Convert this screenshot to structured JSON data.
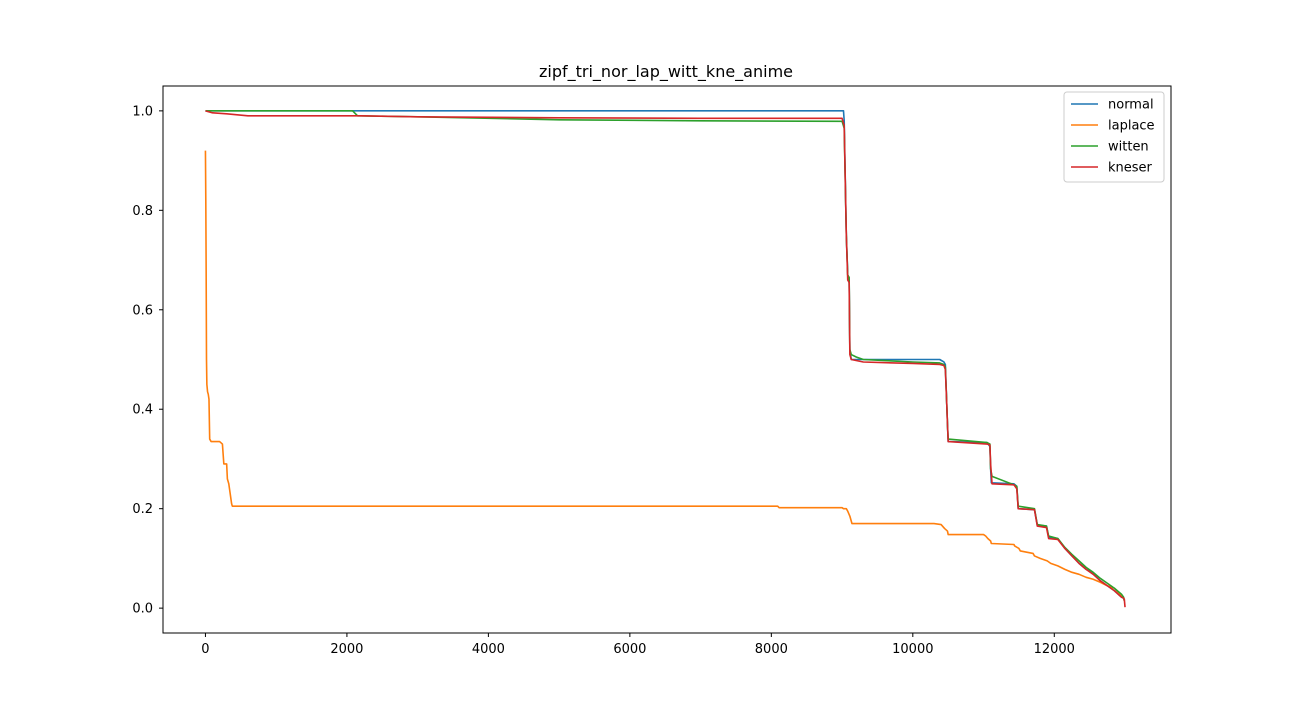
{
  "chart_data": {
    "type": "line",
    "title": "zipf_tri_nor_lap_witt_kne_anime",
    "xlabel": "",
    "ylabel": "",
    "xlim": [
      -600,
      13650
    ],
    "ylim": [
      -0.05,
      1.05
    ],
    "x_ticks": [
      0,
      2000,
      4000,
      6000,
      8000,
      10000,
      12000
    ],
    "x_tick_labels": [
      "0",
      "2000",
      "4000",
      "6000",
      "8000",
      "10000",
      "12000"
    ],
    "y_ticks": [
      0.0,
      0.2,
      0.4,
      0.6,
      0.8,
      1.0
    ],
    "y_tick_labels": [
      "0.0",
      "0.2",
      "0.4",
      "0.6",
      "0.8",
      "1.0"
    ],
    "grid": false,
    "legend_position": "top-right",
    "series": [
      {
        "name": "normal",
        "color": "#1f77b4",
        "x": [
          0,
          9020,
          9030,
          9060,
          9080,
          9100,
          9110,
          9130,
          10380,
          10440,
          10460,
          10480,
          10490,
          10500,
          11050,
          11090,
          11100,
          11110,
          11430,
          11470,
          11490,
          11720,
          11760,
          11890,
          11920,
          12050,
          12150,
          12250,
          12350,
          12450,
          12550,
          12650,
          12750,
          12850,
          12950,
          12980,
          12990
        ],
        "y": [
          1.0,
          1.0,
          0.98,
          0.75,
          0.67,
          0.66,
          0.52,
          0.5,
          0.5,
          0.495,
          0.49,
          0.41,
          0.37,
          0.335,
          0.333,
          0.325,
          0.28,
          0.252,
          0.25,
          0.245,
          0.2,
          0.198,
          0.167,
          0.165,
          0.143,
          0.14,
          0.12,
          0.105,
          0.09,
          0.078,
          0.07,
          0.055,
          0.045,
          0.035,
          0.022,
          0.02,
          0.015
        ]
      },
      {
        "name": "laplace",
        "color": "#ff7f0e",
        "x": [
          0,
          5,
          10,
          15,
          20,
          30,
          40,
          50,
          60,
          80,
          100,
          200,
          240,
          260,
          300,
          310,
          330,
          350,
          370,
          380,
          2000,
          4000,
          6000,
          8090,
          8110,
          9000,
          9020,
          9060,
          9080,
          9110,
          9140,
          10300,
          10400,
          10450,
          10490,
          10500,
          11000,
          11030,
          11060,
          11100,
          11110,
          11430,
          11440,
          11500,
          11520,
          11700,
          11720,
          11800,
          11900,
          11950,
          12050,
          12150,
          12250,
          12350,
          12450,
          12550,
          12650,
          12750,
          12850,
          12950,
          12980,
          12990
        ],
        "y": [
          0.92,
          0.82,
          0.68,
          0.5,
          0.45,
          0.435,
          0.43,
          0.42,
          0.34,
          0.335,
          0.335,
          0.335,
          0.33,
          0.29,
          0.29,
          0.26,
          0.25,
          0.23,
          0.21,
          0.205,
          0.205,
          0.205,
          0.205,
          0.205,
          0.202,
          0.202,
          0.2,
          0.2,
          0.195,
          0.185,
          0.17,
          0.17,
          0.168,
          0.16,
          0.155,
          0.148,
          0.148,
          0.145,
          0.14,
          0.135,
          0.13,
          0.128,
          0.125,
          0.12,
          0.115,
          0.11,
          0.105,
          0.1,
          0.095,
          0.09,
          0.085,
          0.078,
          0.072,
          0.068,
          0.062,
          0.058,
          0.052,
          0.045,
          0.04,
          0.025,
          0.02,
          0.015
        ]
      },
      {
        "name": "witten",
        "color": "#2ca02c",
        "x": [
          0,
          2080,
          2150,
          3000,
          5000,
          7000,
          9000,
          9030,
          9060,
          9080,
          9100,
          9110,
          9130,
          9200,
          9300,
          10000,
          10380,
          10440,
          10460,
          10480,
          10490,
          10500,
          11050,
          11090,
          11100,
          11120,
          11430,
          11470,
          11490,
          11720,
          11760,
          11890,
          11920,
          12050,
          12150,
          12250,
          12350,
          12450,
          12550,
          12650,
          12750,
          12850,
          12950,
          12980,
          12990
        ],
        "y": [
          1.0,
          1.0,
          0.99,
          0.988,
          0.982,
          0.98,
          0.979,
          0.965,
          0.75,
          0.67,
          0.665,
          0.52,
          0.51,
          0.505,
          0.5,
          0.495,
          0.493,
          0.49,
          0.485,
          0.41,
          0.37,
          0.34,
          0.333,
          0.33,
          0.28,
          0.265,
          0.248,
          0.245,
          0.205,
          0.2,
          0.168,
          0.165,
          0.145,
          0.14,
          0.122,
          0.108,
          0.095,
          0.082,
          0.072,
          0.06,
          0.05,
          0.04,
          0.028,
          0.022,
          0.015
        ]
      },
      {
        "name": "kneser",
        "color": "#d62728",
        "x": [
          0,
          100,
          300,
          600,
          1000,
          2100,
          2200,
          3000,
          5000,
          7000,
          9000,
          9030,
          9060,
          9080,
          9100,
          9110,
          9130,
          9300,
          10000,
          10380,
          10440,
          10460,
          10480,
          10490,
          10500,
          11050,
          11090,
          11100,
          11120,
          11430,
          11470,
          11490,
          11720,
          11760,
          11890,
          11920,
          12050,
          12150,
          12250,
          12350,
          12450,
          12550,
          12650,
          12750,
          12850,
          12950,
          12980,
          12990,
          13000
        ],
        "y": [
          1.0,
          0.996,
          0.994,
          0.99,
          0.99,
          0.99,
          0.99,
          0.988,
          0.986,
          0.985,
          0.985,
          0.97,
          0.75,
          0.66,
          0.655,
          0.51,
          0.5,
          0.495,
          0.492,
          0.49,
          0.488,
          0.48,
          0.41,
          0.37,
          0.335,
          0.33,
          0.328,
          0.29,
          0.25,
          0.248,
          0.24,
          0.2,
          0.198,
          0.165,
          0.162,
          0.14,
          0.138,
          0.12,
          0.105,
          0.09,
          0.078,
          0.068,
          0.055,
          0.045,
          0.035,
          0.022,
          0.02,
          0.018,
          0.002
        ]
      }
    ]
  }
}
